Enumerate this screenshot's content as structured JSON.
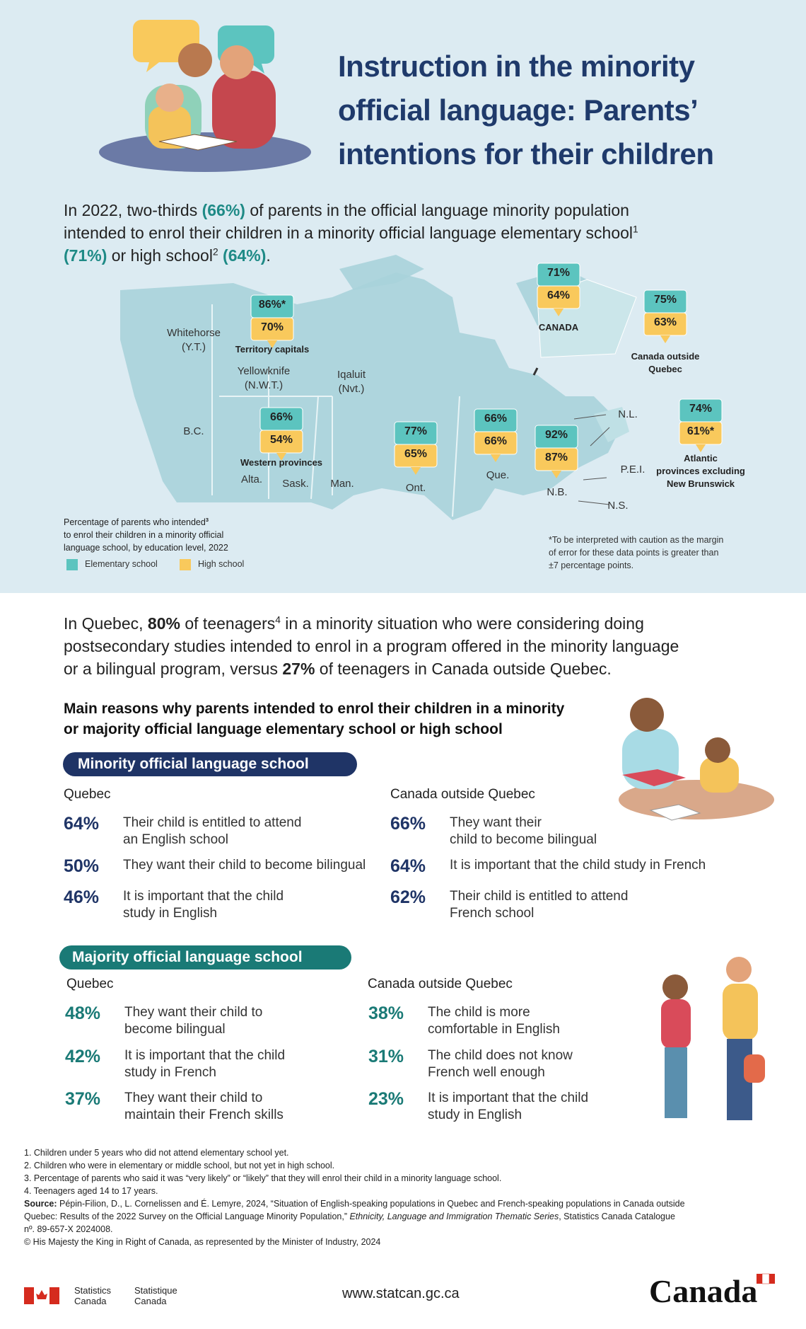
{
  "header": {
    "title": [
      "Instruction in the minority",
      "official language: Parents’",
      "intentions for their children"
    ]
  },
  "intro": {
    "lines": [
      [
        {
          "text": "In 2022, two-thirds ",
          "style": "plain"
        },
        {
          "text": "(66%)",
          "style": "accent"
        },
        {
          "text": " of parents in the official language minority population",
          "style": "plain"
        }
      ],
      [
        {
          "text": "intended to enrol their children in a minority official language elementary school",
          "style": "plain"
        },
        {
          "text": "1",
          "style": "sup"
        }
      ],
      [
        {
          "text": "(71%)",
          "style": "accent"
        },
        {
          "text": " or high school",
          "style": "plain"
        },
        {
          "text": "2",
          "style": "sup"
        },
        {
          "text": " (64%)",
          "style": "accent"
        },
        {
          "text": ".",
          "style": "plain"
        }
      ]
    ]
  },
  "map": {
    "regions": [
      {
        "name": [
          "Territory capitals"
        ],
        "elementary": "86%*",
        "high_school": "70%"
      },
      {
        "name": [
          "CANADA"
        ],
        "elementary": "71%",
        "high_school": "64%"
      },
      {
        "name": [
          "Canada outside",
          "Quebec"
        ],
        "elementary": "75%",
        "high_school": "63%"
      },
      {
        "name": [
          "Western provinces"
        ],
        "elementary": "66%",
        "high_school": "54%"
      },
      {
        "name": [],
        "elementary": "77%",
        "high_school": "65%"
      },
      {
        "name": [],
        "elementary": "66%",
        "high_school": "66%"
      },
      {
        "name": [],
        "elementary": "92%",
        "high_school": "87%"
      },
      {
        "name": [
          "Atlantic",
          "provinces excluding",
          "New Brunswick"
        ],
        "elementary": "74%",
        "high_school": "61%*"
      }
    ],
    "places": [
      [
        "Whitehorse",
        "(Y.T.)"
      ],
      [
        "Yellowknife",
        "(N.W.T.)"
      ],
      [
        "Iqaluit",
        "(Nvt.)"
      ],
      [
        "B.C."
      ],
      [
        "Alta."
      ],
      [
        "Sask."
      ],
      [
        "Man."
      ],
      [
        "Ont."
      ],
      [
        "Que."
      ],
      [
        "N.B."
      ],
      [
        "N.L."
      ],
      [
        "P.E.I."
      ],
      [
        "N.S."
      ]
    ],
    "legend": {
      "title": [
        [
          {
            "text": "Percentage of parents who intended",
            "style": "plain"
          },
          {
            "text": "3",
            "style": "sup"
          }
        ],
        [
          {
            "text": "to enrol their children in a minority official",
            "style": "plain"
          }
        ],
        [
          {
            "text": "language school, by education level, 2022",
            "style": "plain"
          }
        ]
      ],
      "items": [
        {
          "label": "Elementary school",
          "color": "#5cc4bf"
        },
        {
          "label": "High school",
          "color": "#f9c95c"
        }
      ]
    },
    "note": [
      "*To be interpreted with caution as the margin",
      "of error for these data points is greater than",
      "±7 percentage points."
    ]
  },
  "teens": {
    "lines": [
      [
        {
          "text": "In Quebec, ",
          "style": "plain"
        },
        {
          "text": "80%",
          "style": "bold"
        },
        {
          "text": " of teenagers",
          "style": "plain"
        },
        {
          "text": "4",
          "style": "sup"
        },
        {
          "text": " in a minority situation who were considering doing",
          "style": "plain"
        }
      ],
      [
        {
          "text": "postsecondary studies intended to enrol in a program offered in the minority language",
          "style": "plain"
        }
      ],
      [
        {
          "text": "or a bilingual program, versus ",
          "style": "plain"
        },
        {
          "text": "27%",
          "style": "bold"
        },
        {
          "text": " of teenagers in Canada outside Quebec.",
          "style": "plain"
        }
      ]
    ]
  },
  "reasons": {
    "title": [
      "Main reasons why parents intended to enrol their children in a minority",
      "or majority official language elementary school or high school"
    ],
    "groups": [
      {
        "title": "Minority official language school",
        "color": "#1f3466",
        "columns": [
          {
            "title": "Quebec",
            "items": [
              {
                "pct": "64%",
                "text": [
                  "Their child is entitled to attend",
                  "an English school"
                ]
              },
              {
                "pct": "50%",
                "text": [
                  "They want their child to become bilingual"
                ]
              },
              {
                "pct": "46%",
                "text": [
                  "It is important that the child",
                  "study in English"
                ]
              }
            ]
          },
          {
            "title": "Canada outside Quebec",
            "items": [
              {
                "pct": "66%",
                "text": [
                  "They want their",
                  "child to become bilingual"
                ]
              },
              {
                "pct": "64%",
                "text": [
                  "It is important that the child study in French"
                ]
              },
              {
                "pct": "62%",
                "text": [
                  "Their child is entitled to attend",
                  "French school"
                ]
              }
            ]
          }
        ]
      },
      {
        "title": "Majority official language school",
        "color": "#1a7a76",
        "columns": [
          {
            "title": "Quebec",
            "items": [
              {
                "pct": "48%",
                "text": [
                  "They want their child to",
                  "become bilingual"
                ]
              },
              {
                "pct": "42%",
                "text": [
                  "It is important that the child",
                  "study in French"
                ]
              },
              {
                "pct": "37%",
                "text": [
                  "They want their child to",
                  "maintain their French skills"
                ]
              }
            ]
          },
          {
            "title": "Canada outside Quebec",
            "items": [
              {
                "pct": "38%",
                "text": [
                  "The child is more",
                  "comfortable in English"
                ]
              },
              {
                "pct": "31%",
                "text": [
                  "The child does not know",
                  "French well enough"
                ]
              },
              {
                "pct": "23%",
                "text": [
                  "It is important that the child",
                  "study in English"
                ]
              }
            ]
          }
        ]
      }
    ]
  },
  "footnotes": {
    "lines": [
      [
        {
          "text": "1. Children under 5 years who did not attend elementary school yet.",
          "style": "plain"
        }
      ],
      [
        {
          "text": "2. Children who were in elementary or middle school, but not yet in high school.",
          "style": "plain"
        }
      ],
      [
        {
          "text": "3. Percentage of parents who said it was “very likely” or “likely” that they will enrol their child in a minority language school.",
          "style": "plain"
        }
      ],
      [
        {
          "text": "4. Teenagers aged 14 to 17 years.",
          "style": "plain"
        }
      ],
      [
        {
          "text": "Source:",
          "style": "bold"
        },
        {
          "text": " Pépin-Filion, D., L. Cornelissen and É. Lemyre, 2024, “Situation of English-speaking populations in Quebec and French-speaking populations in Canada outside",
          "style": "plain"
        }
      ],
      [
        {
          "text": "Quebec: Results of the 2022 Survey on the Official Language Minority Population,” ",
          "style": "plain"
        },
        {
          "text": "Ethnicity, Language and Immigration Thematic Series",
          "style": "italic"
        },
        {
          "text": ", Statistics Canada Catalogue",
          "style": "plain"
        }
      ],
      [
        {
          "text": "nº. 89-657-X 2024008.",
          "style": "plain"
        }
      ],
      [
        {
          "text": "© His Majesty the King in Right of Canada, as represented by the Minister of Industry, 2024",
          "style": "plain"
        }
      ]
    ]
  },
  "footer": {
    "agency_en": [
      "Statistics",
      "Canada"
    ],
    "agency_fr": [
      "Statistique",
      "Canada"
    ],
    "url": "www.statcan.gc.ca",
    "wordmark": "Canada"
  }
}
